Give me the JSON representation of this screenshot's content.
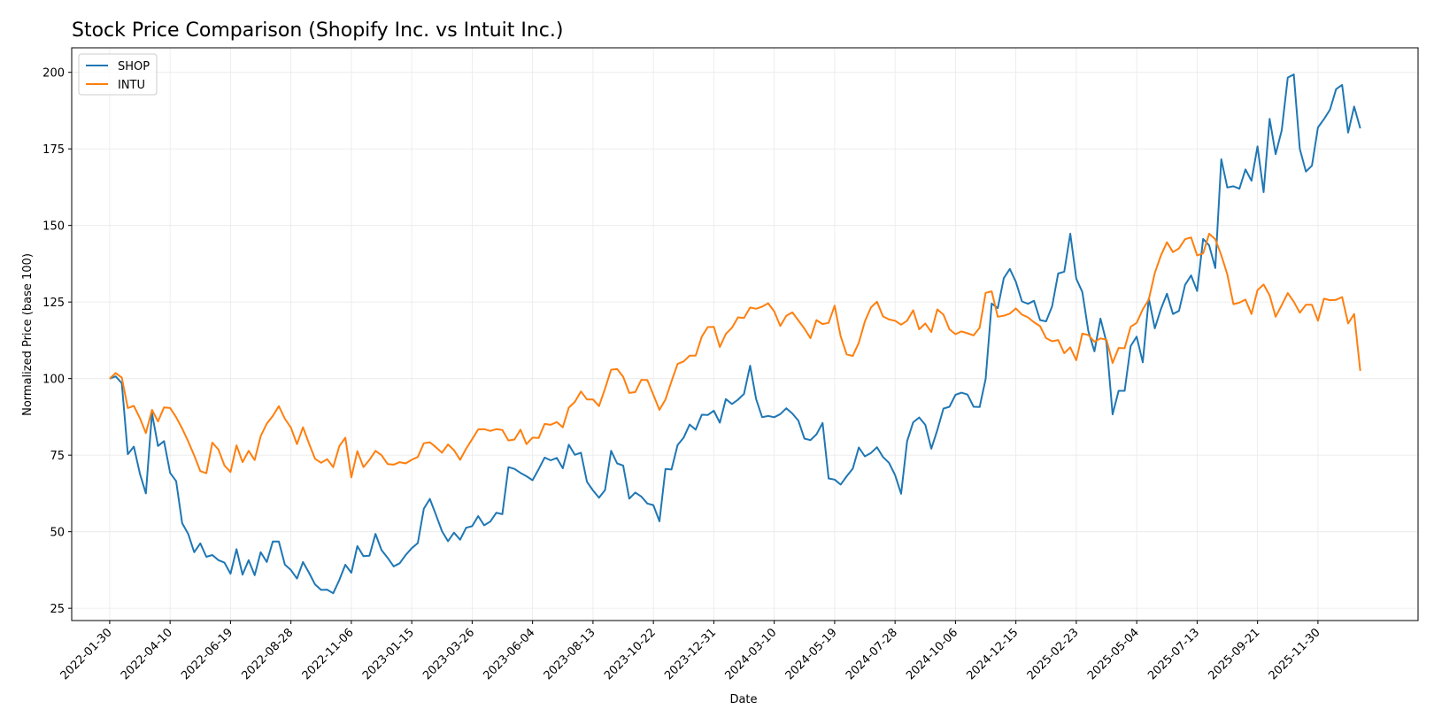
{
  "chart_data": {
    "type": "line",
    "title": "Stock Price Comparison (Shopify Inc. vs Intuit Inc.)",
    "xlabel": "Date",
    "ylabel": "Normalized Price (base 100)",
    "ylim": [
      21,
      208
    ],
    "xlim": [
      "2021-12-17",
      "2026-03-26"
    ],
    "yticks": [
      25,
      50,
      75,
      100,
      125,
      150,
      175,
      200
    ],
    "xticks": [
      "2022-01-30",
      "2022-04-10",
      "2022-06-19",
      "2022-08-28",
      "2022-11-06",
      "2023-01-15",
      "2023-03-26",
      "2023-06-04",
      "2023-08-13",
      "2023-10-22",
      "2023-12-31",
      "2024-03-10",
      "2024-05-19",
      "2024-07-28",
      "2024-10-06",
      "2024-12-15",
      "2025-02-23",
      "2025-05-04",
      "2025-07-13",
      "2025-09-21",
      "2025-11-30"
    ],
    "grid": true,
    "legend_position": "top-left",
    "x_start": "2022-01-30",
    "x_step_days": 7,
    "series": [
      {
        "name": "SHOP",
        "color": "#1f77b4",
        "values": [
          100,
          100.7,
          98.5,
          75.3,
          77.8,
          69,
          62.5,
          88.7,
          78,
          79.6,
          69.2,
          66.5,
          52.8,
          49.3,
          43.3,
          46.2,
          41.8,
          42.4,
          40.7,
          39.9,
          36.3,
          44.3,
          36,
          40.7,
          35.8,
          43.3,
          40.1,
          46.8,
          46.8,
          39.3,
          37.5,
          34.7,
          40.1,
          36.6,
          32.8,
          31,
          31.1,
          29.9,
          34.2,
          39.2,
          36.6,
          45.3,
          42,
          42.2,
          49.3,
          44,
          41.5,
          38.7,
          39.7,
          42.4,
          44.6,
          46.3,
          57.5,
          60.7,
          55.6,
          50.2,
          46.9,
          49.7,
          47.4,
          51.3,
          51.8,
          55.1,
          52.1,
          53.3,
          56.2,
          55.7,
          71.1,
          70.5,
          69.2,
          68.1,
          66.8,
          70.4,
          74.2,
          73.3,
          74.1,
          70.7,
          78.4,
          75.1,
          75.8,
          66.3,
          63.5,
          61.1,
          63.6,
          76.4,
          72.3,
          71.6,
          60.8,
          62.8,
          61.5,
          59.2,
          58.7,
          53.4,
          70.5,
          70.3,
          78.3,
          80.7,
          85,
          83.3,
          88.2,
          88.1,
          89.5,
          85.6,
          93.3,
          91.7,
          93.1,
          95,
          104.2,
          93.3,
          87.4,
          87.8,
          87.4,
          88.4,
          90.3,
          88.6,
          86.3,
          80.4,
          79.9,
          81.8,
          85.5,
          67.4,
          67,
          65.4,
          68.1,
          70.6,
          77.5,
          74.6,
          75.7,
          77.6,
          74.4,
          72.5,
          68.5,
          62.4,
          79.6,
          85.7,
          87.3,
          84.9,
          77.1,
          83.2,
          90.2,
          90.8,
          94.7,
          95.4,
          94.8,
          90.8,
          90.7,
          99.9,
          124.5,
          123,
          132.8,
          135.8,
          131.6,
          125.2,
          124.4,
          125.4,
          119.1,
          118.7,
          123.6,
          134.3,
          134.9,
          147.3,
          132.6,
          128.3,
          115.5,
          108.9,
          119.6,
          111.8,
          88.3,
          96,
          96,
          110.6,
          113.7,
          105.3,
          126.2,
          116.4,
          122.7,
          127.7,
          121.1,
          122.1,
          130.6,
          133.7,
          128.6,
          145.6,
          143.5,
          136.1,
          171.6,
          162.4,
          162.8,
          162,
          168.3,
          164.6,
          175.8,
          160.9,
          184.8,
          173.3,
          181.1,
          198.3,
          199.3,
          175,
          167.6,
          169.5,
          182,
          184.7,
          187.8,
          194.5,
          195.9,
          180.3,
          188.8,
          181.7
        ]
      },
      {
        "name": "INTU",
        "color": "#ff7f0e",
        "values": [
          100,
          101.8,
          100.3,
          90.4,
          91.1,
          87.1,
          82.2,
          89.8,
          86,
          90.6,
          90.4,
          87.4,
          83.7,
          79.5,
          74.9,
          69.8,
          69.1,
          79.1,
          76.8,
          71.6,
          69.5,
          78.2,
          72.7,
          76.4,
          73.4,
          81.2,
          85.3,
          87.8,
          91,
          86.9,
          84,
          78.6,
          84.1,
          78.8,
          73.8,
          72.5,
          73.7,
          71.1,
          77.9,
          80.7,
          67.7,
          76.3,
          71.1,
          73.5,
          76.4,
          75,
          72.1,
          71.9,
          72.7,
          72.3,
          73.5,
          74.4,
          78.9,
          79.2,
          77.6,
          75.8,
          78.5,
          76.6,
          73.5,
          77.1,
          80.2,
          83.4,
          83.5,
          82.9,
          83.5,
          83.2,
          79.8,
          80.1,
          83.3,
          78.6,
          80.7,
          80.6,
          85.2,
          84.9,
          85.8,
          84.1,
          90.5,
          92.4,
          95.8,
          93.2,
          93.2,
          91,
          96.7,
          102.9,
          103.1,
          100.6,
          95.3,
          95.6,
          99.6,
          99.5,
          94.7,
          89.8,
          93.2,
          99.1,
          104.8,
          105.6,
          107.5,
          107.5,
          113.7,
          116.8,
          116.9,
          110.3,
          114.6,
          116.6,
          120,
          119.8,
          123.2,
          122.8,
          123.5,
          124.6,
          121.9,
          117.2,
          120.5,
          121.6,
          119,
          116.3,
          113.2,
          119.1,
          117.8,
          118.2,
          123.8,
          113.8,
          107.9,
          107.4,
          111.7,
          118.6,
          123.2,
          125.1,
          120.3,
          119.3,
          118.9,
          117.6,
          118.9,
          122.3,
          116.1,
          118,
          115.2,
          122.6,
          120.9,
          116.1,
          114.5,
          115.4,
          114.8,
          114.1,
          116.6,
          128,
          128.5,
          120.2,
          120.5,
          121.2,
          122.9,
          120.9,
          120,
          118.4,
          117.1,
          113.2,
          112.2,
          112.6,
          108.3,
          110.2,
          106,
          114.7,
          114.2,
          112,
          113.1,
          112.7,
          105.1,
          110,
          109.9,
          116.9,
          118.2,
          122.6,
          125.8,
          134.5,
          140.2,
          144.5,
          141.3,
          142.5,
          145.5,
          146.1,
          140.2,
          140.9,
          147.3,
          145.5,
          140.3,
          134,
          124.3,
          124.8,
          125.8,
          121.1,
          128.9,
          130.7,
          127.2,
          120.2,
          124,
          127.9,
          125.1,
          121.5,
          124.1,
          124.1,
          118.9,
          126.1,
          125.6,
          125.7,
          126.6,
          118,
          121.1,
          102.5
        ]
      }
    ]
  }
}
